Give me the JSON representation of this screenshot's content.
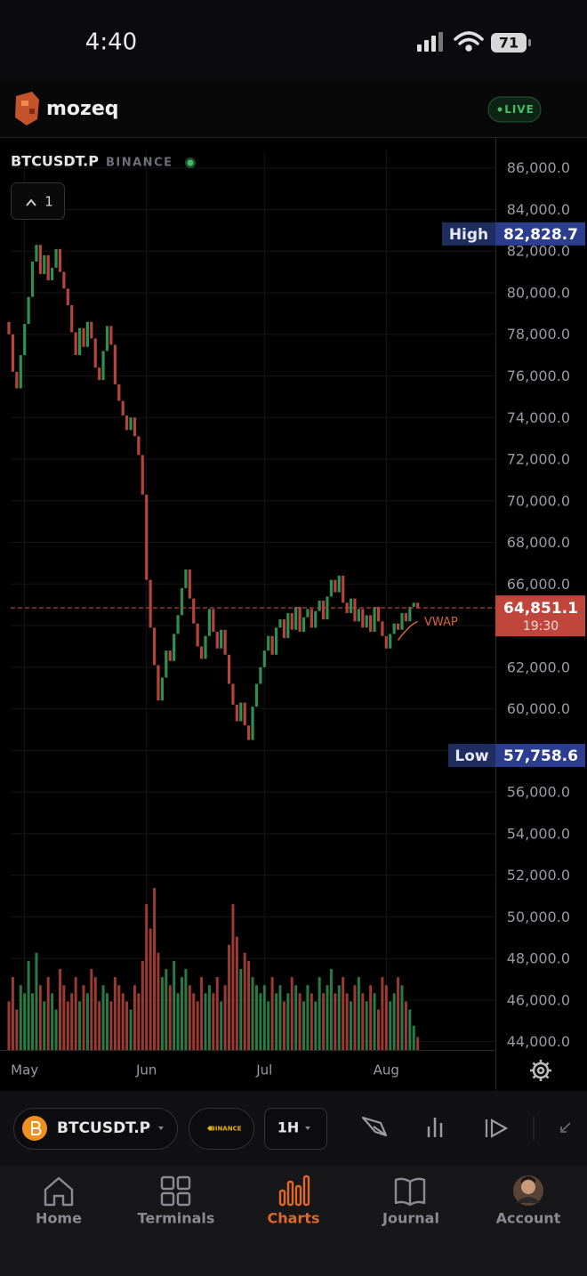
{
  "status_bar": {
    "time": "4:40",
    "battery": "71"
  },
  "header": {
    "brand": "mozeq",
    "live": "LIVE"
  },
  "chart_data": {
    "type": "candlestick",
    "symbol": "BTCUSDT.P",
    "exchange": "BINANCE",
    "indicator_count": 1,
    "categories": [
      null,
      null,
      null,
      null,
      "May",
      null,
      null,
      null,
      null,
      null,
      null,
      null,
      null,
      null,
      null,
      null,
      null,
      null,
      null,
      null,
      null,
      null,
      null,
      null,
      null,
      null,
      null,
      null,
      null,
      null,
      null,
      null,
      null,
      null,
      null,
      "Jun",
      null,
      null,
      null,
      null,
      null,
      null,
      null,
      null,
      null,
      null,
      null,
      null,
      null,
      null,
      null,
      null,
      null,
      null,
      null,
      null,
      null,
      null,
      null,
      null,
      null,
      null,
      null,
      null,
      null,
      "Jul",
      null,
      null,
      null,
      null,
      null,
      null,
      null,
      null,
      null,
      null,
      null,
      null,
      null,
      null,
      null,
      null,
      null,
      null,
      null,
      null,
      null,
      null,
      null,
      null,
      null,
      null,
      null,
      null,
      null,
      null,
      "Aug",
      null,
      null,
      null,
      null,
      null,
      null,
      null,
      null
    ],
    "open": [
      78600,
      78000,
      76200,
      75400,
      77000,
      78500,
      79800,
      81500,
      82300,
      80900,
      81800,
      80600,
      81200,
      82100,
      81000,
      80200,
      79400,
      78100,
      77000,
      78300,
      77400,
      78600,
      77800,
      76400,
      75800,
      77200,
      78400,
      77500,
      75600,
      74800,
      74100,
      73400,
      74000,
      73100,
      72200,
      70300,
      66200,
      63900,
      62100,
      60400,
      61500,
      62800,
      62300,
      63600,
      64500,
      65800,
      66700,
      65300,
      64100,
      63000,
      62400,
      63500,
      64800,
      63700,
      62900,
      63800,
      62600,
      61200,
      60200,
      59400,
      60300,
      59200,
      58500,
      60100,
      61200,
      62000,
      62800,
      63500,
      62600,
      63900,
      64300,
      63400,
      64600,
      63800,
      64900,
      63700,
      64400,
      64800,
      63900,
      64700,
      65200,
      64300,
      65400,
      66200,
      65600,
      66400,
      65100,
      64600,
      65300,
      64200,
      64800,
      63900,
      64500,
      63700,
      64900,
      64200,
      63500,
      62900,
      63600,
      64100,
      63800,
      64600,
      64200,
      64900,
      65100
    ],
    "high": {
      "name": "High",
      "value": 82828.7,
      "label": "82,828.7"
    },
    "low": {
      "name": "Low",
      "value": 57758.6,
      "label": "57,758.6"
    },
    "close": [
      78000,
      76200,
      75400,
      77000,
      78500,
      79800,
      81500,
      82300,
      80900,
      81800,
      80600,
      81200,
      82100,
      81000,
      80200,
      79400,
      78100,
      77000,
      78300,
      77400,
      78600,
      77800,
      76400,
      75800,
      77200,
      78400,
      77500,
      75600,
      74800,
      74100,
      73400,
      74000,
      73100,
      72200,
      70300,
      66200,
      63900,
      62100,
      60400,
      61500,
      62800,
      62300,
      63600,
      64500,
      65800,
      66700,
      65300,
      64100,
      63000,
      62400,
      63500,
      64800,
      63700,
      62900,
      63800,
      62600,
      61200,
      60200,
      59400,
      60300,
      59200,
      58500,
      60100,
      61200,
      62000,
      62800,
      63500,
      62600,
      63900,
      64300,
      63400,
      64600,
      63800,
      64900,
      63700,
      64400,
      64800,
      63900,
      64700,
      65200,
      64300,
      65400,
      66200,
      65600,
      66400,
      65100,
      64600,
      65300,
      64200,
      64800,
      63900,
      64500,
      63700,
      64900,
      64200,
      63500,
      62900,
      63600,
      64100,
      63800,
      64600,
      64200,
      64900,
      65100,
      64851.1
    ],
    "volume": [
      30,
      45,
      25,
      40,
      35,
      55,
      35,
      60,
      40,
      30,
      45,
      35,
      25,
      50,
      40,
      30,
      35,
      45,
      30,
      40,
      35,
      50,
      45,
      30,
      40,
      35,
      30,
      45,
      40,
      35,
      30,
      25,
      40,
      35,
      55,
      90,
      75,
      100,
      60,
      45,
      50,
      40,
      55,
      35,
      45,
      50,
      40,
      35,
      30,
      45,
      35,
      40,
      35,
      45,
      30,
      40,
      65,
      90,
      70,
      50,
      60,
      55,
      45,
      40,
      35,
      40,
      30,
      45,
      35,
      40,
      30,
      35,
      45,
      40,
      35,
      30,
      40,
      35,
      30,
      45,
      35,
      40,
      50,
      35,
      40,
      45,
      35,
      30,
      40,
      45,
      35,
      30,
      40,
      35,
      25,
      45,
      40,
      30,
      35,
      45,
      40,
      30,
      25,
      15,
      8
    ],
    "colors": {
      "up": "#2f8f4e",
      "down": "#b5443a"
    },
    "vwap": {
      "name": "VWAP",
      "color": "#d8643a",
      "values": [
        null,
        null,
        null,
        null,
        null,
        null,
        null,
        null,
        null,
        null,
        null,
        null,
        null,
        null,
        null,
        null,
        null,
        null,
        null,
        null,
        null,
        null,
        null,
        null,
        null,
        null,
        null,
        null,
        null,
        null,
        null,
        null,
        null,
        null,
        null,
        null,
        null,
        null,
        null,
        null,
        null,
        null,
        null,
        null,
        null,
        null,
        null,
        null,
        null,
        null,
        null,
        null,
        null,
        null,
        null,
        null,
        null,
        null,
        null,
        null,
        null,
        null,
        null,
        null,
        null,
        null,
        null,
        null,
        null,
        null,
        null,
        null,
        null,
        null,
        null,
        null,
        null,
        null,
        null,
        null,
        null,
        null,
        null,
        null,
        null,
        null,
        null,
        null,
        null,
        null,
        null,
        null,
        null,
        null,
        null,
        null,
        null,
        null,
        null,
        63300,
        63550,
        63750,
        63950,
        64100,
        64200
      ]
    },
    "ylim": [
      43600,
      86800
    ],
    "yticks": [
      {
        "value": 44000,
        "label": "44,000.0"
      },
      {
        "value": 46000,
        "label": "46,000.0"
      },
      {
        "value": 48000,
        "label": "48,000.0"
      },
      {
        "value": 50000,
        "label": "50,000.0"
      },
      {
        "value": 52000,
        "label": "52,000.0"
      },
      {
        "value": 54000,
        "label": "54,000.0"
      },
      {
        "value": 56000,
        "label": "56,000.0"
      },
      {
        "value": 58000,
        "label": "58,000.0"
      },
      {
        "value": 60000,
        "label": "60,000.0"
      },
      {
        "value": 62000,
        "label": "62,000.0"
      },
      {
        "value": 64000,
        "label": "64,000.0"
      },
      {
        "value": 66000,
        "label": "66,000.0"
      },
      {
        "value": 68000,
        "label": "68,000.0"
      },
      {
        "value": 70000,
        "label": "70,000.0"
      },
      {
        "value": 72000,
        "label": "72,000.0"
      },
      {
        "value": 74000,
        "label": "74,000.0"
      },
      {
        "value": 76000,
        "label": "76,000.0"
      },
      {
        "value": 78000,
        "label": "78,000.0"
      },
      {
        "value": 80000,
        "label": "80,000.0"
      },
      {
        "value": 82000,
        "label": "82,000.0"
      },
      {
        "value": 84000,
        "label": "84,000.0"
      },
      {
        "value": 86000,
        "label": "86,000.0"
      }
    ],
    "grid": true,
    "last_price": {
      "value": 64851.1,
      "label": "64,851.1",
      "countdown": "19:30"
    }
  },
  "toolbar": {
    "symbol": "BTCUSDT.P",
    "exchange": "BINANCE",
    "interval": "1H"
  },
  "nav": {
    "items": [
      {
        "label": "Home"
      },
      {
        "label": "Terminals"
      },
      {
        "label": "Charts"
      },
      {
        "label": "Journal"
      },
      {
        "label": "Account"
      }
    ],
    "active": 2
  }
}
